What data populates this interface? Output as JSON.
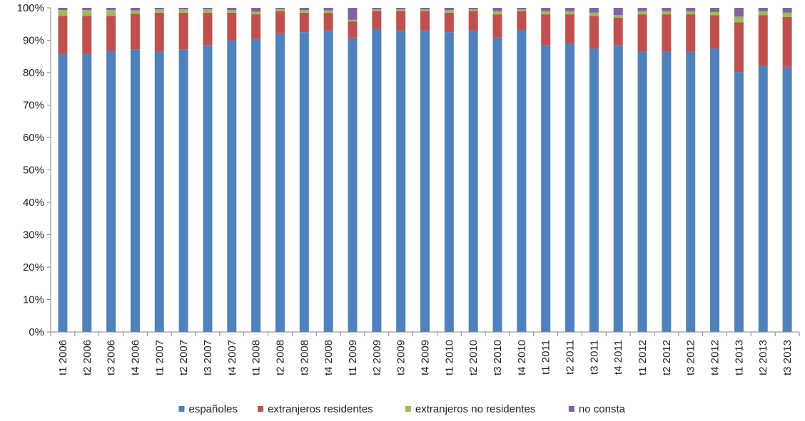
{
  "chart_data": {
    "type": "bar",
    "stacked": true,
    "percent": true,
    "categories": [
      "t1 2006",
      "t2 2006",
      "t3 2006",
      "t4 2006",
      "t1 2007",
      "t2 2007",
      "t3 2007",
      "t4 2007",
      "t1 2008",
      "t2 2008",
      "t3 2008",
      "t4 2008",
      "t1 2009",
      "t2 2009",
      "t3 2009",
      "t4 2009",
      "t1 2010",
      "t2 2010",
      "t3 2010",
      "t4 2010",
      "t1 2011",
      "t2 2011",
      "t3 2011",
      "t4 2011",
      "t1 2012",
      "t2 2012",
      "t3 2012",
      "t4 2012",
      "t1 2013",
      "t2 2013",
      "t3 2013"
    ],
    "series": [
      {
        "name": "españoles",
        "color": "#4f81bd",
        "values": [
          85.8,
          85.8,
          86.8,
          87.2,
          86.5,
          87.2,
          88.5,
          90.0,
          90.5,
          92.0,
          92.5,
          93.0,
          90.8,
          93.5,
          93.0,
          93.0,
          92.5,
          93.0,
          90.8,
          93.2,
          88.5,
          89.0,
          87.5,
          88.5,
          86.5,
          86.5,
          86.5,
          87.5,
          80.2,
          82.2,
          81.8
        ]
      },
      {
        "name": "extranjeros residentes",
        "color": "#c0504d",
        "values": [
          11.7,
          11.7,
          10.7,
          11.0,
          12.0,
          11.3,
          10.0,
          8.5,
          7.5,
          7.0,
          6.0,
          5.5,
          5.0,
          5.5,
          6.0,
          6.0,
          6.0,
          6.0,
          7.2,
          5.8,
          9.5,
          9.0,
          10.0,
          8.5,
          11.5,
          11.5,
          11.5,
          10.2,
          15.3,
          15.5,
          15.4
        ]
      },
      {
        "name": "extranjeros no residentes",
        "color": "#9bbb59",
        "values": [
          1.8,
          1.8,
          1.8,
          1.0,
          1.0,
          1.0,
          1.0,
          0.8,
          0.8,
          0.6,
          0.8,
          0.7,
          0.5,
          0.5,
          0.5,
          0.5,
          0.8,
          0.5,
          1.0,
          0.5,
          1.0,
          1.0,
          1.0,
          0.8,
          1.0,
          1.0,
          1.0,
          1.0,
          1.8,
          1.3,
          1.3
        ]
      },
      {
        "name": "no consta",
        "color": "#8064a2",
        "values": [
          0.7,
          0.7,
          0.7,
          0.8,
          0.5,
          0.5,
          0.5,
          0.7,
          1.2,
          0.4,
          0.7,
          0.8,
          3.7,
          0.5,
          0.5,
          0.5,
          0.7,
          0.5,
          1.0,
          0.5,
          1.0,
          1.0,
          1.5,
          2.2,
          1.0,
          1.0,
          1.0,
          1.3,
          2.7,
          1.0,
          1.5
        ]
      }
    ],
    "yticks": [
      "0%",
      "10%",
      "20%",
      "30%",
      "40%",
      "50%",
      "60%",
      "70%",
      "80%",
      "90%",
      "100%"
    ],
    "ylim": [
      0,
      100
    ],
    "legend_position": "bottom",
    "grid": false
  }
}
